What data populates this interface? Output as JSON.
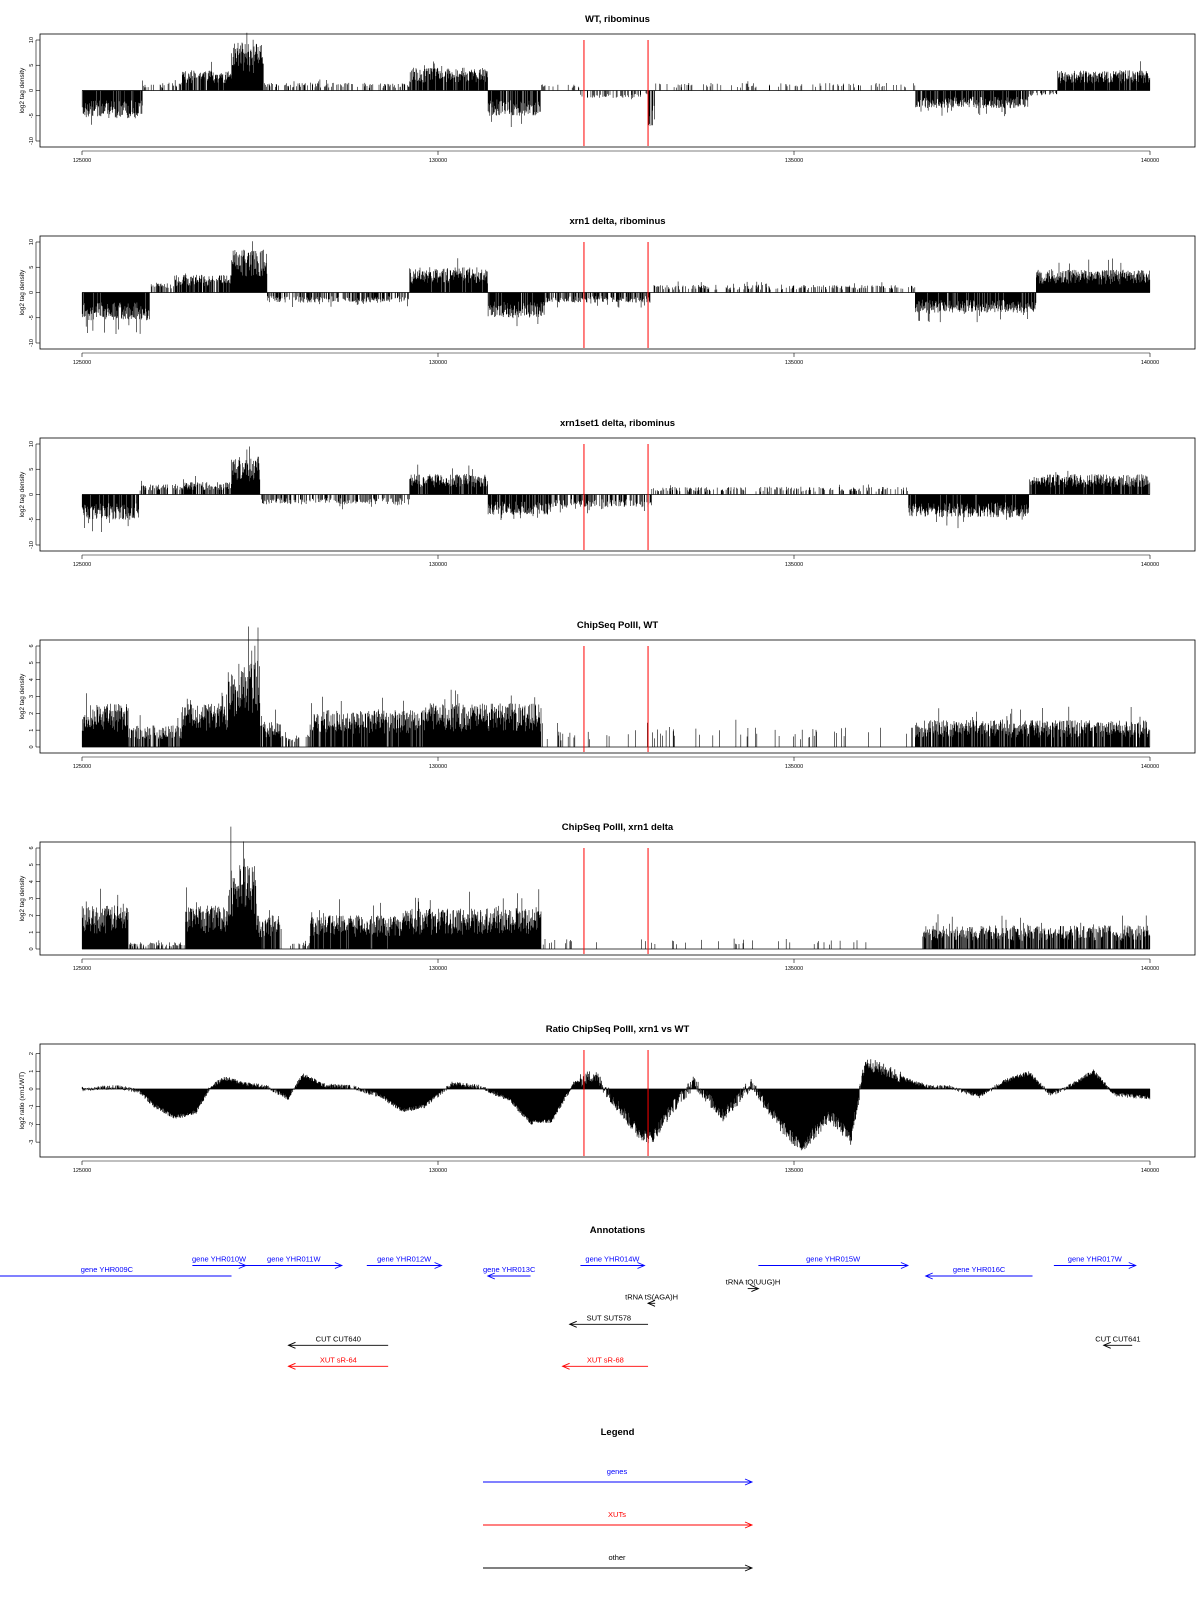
{
  "chart_data": [
    {
      "type": "bar",
      "title": "WT, ribominus",
      "xlabel": "",
      "ylabel": "log2 tag density",
      "xlim": [
        125000,
        140000
      ],
      "ylim": [
        -10,
        10
      ],
      "xticks": [
        "125000",
        "130000",
        "135000",
        "140000"
      ],
      "yticks": [
        "-10",
        "-5",
        "0",
        "5",
        "10"
      ],
      "markers": [
        132050,
        132950
      ],
      "segments": [
        {
          "from": 125000,
          "to": 125850,
          "sign": -1,
          "amp": 5.5,
          "density": 0.9
        },
        {
          "from": 125850,
          "to": 126400,
          "sign": 1,
          "amp": 1.5,
          "density": 0.35
        },
        {
          "from": 126400,
          "to": 127100,
          "sign": 1,
          "amp": 4.0,
          "density": 0.85
        },
        {
          "from": 127100,
          "to": 127550,
          "sign": 1,
          "amp": 9.5,
          "density": 1.0
        },
        {
          "from": 127550,
          "to": 129600,
          "sign": 1,
          "amp": 1.5,
          "density": 0.3
        },
        {
          "from": 129600,
          "to": 130700,
          "sign": 1,
          "amp": 4.5,
          "density": 0.9
        },
        {
          "from": 130700,
          "to": 131450,
          "sign": -1,
          "amp": 5.0,
          "density": 0.85
        },
        {
          "from": 131450,
          "to": 132000,
          "sign": 1,
          "amp": 1.2,
          "density": 0.2
        },
        {
          "from": 132000,
          "to": 132950,
          "sign": -1,
          "amp": 1.5,
          "density": 0.35
        },
        {
          "from": 132950,
          "to": 133050,
          "sign": -1,
          "amp": 7.0,
          "density": 0.6
        },
        {
          "from": 133050,
          "to": 136700,
          "sign": 1,
          "amp": 1.5,
          "density": 0.15
        },
        {
          "from": 136700,
          "to": 138300,
          "sign": -1,
          "amp": 3.5,
          "density": 0.85
        },
        {
          "from": 138300,
          "to": 138700,
          "sign": -1,
          "amp": 1.0,
          "density": 0.3
        },
        {
          "from": 138700,
          "to": 140000,
          "sign": 1,
          "amp": 4.0,
          "density": 0.95
        }
      ]
    },
    {
      "type": "bar",
      "title": "xrn1 delta, ribominus",
      "xlabel": "",
      "ylabel": "log2 tag density",
      "xlim": [
        125000,
        140000
      ],
      "ylim": [
        -10,
        10
      ],
      "xticks": [
        "125000",
        "130000",
        "135000",
        "140000"
      ],
      "yticks": [
        "-10",
        "-5",
        "0",
        "5",
        "10"
      ],
      "markers": [
        132050,
        132950
      ],
      "segments": [
        {
          "from": 125000,
          "to": 125950,
          "sign": -1,
          "amp": 5.5,
          "density": 0.95
        },
        {
          "from": 125950,
          "to": 126300,
          "sign": 1,
          "amp": 2.0,
          "density": 0.4
        },
        {
          "from": 126300,
          "to": 127100,
          "sign": 1,
          "amp": 3.5,
          "density": 0.85
        },
        {
          "from": 127100,
          "to": 127600,
          "sign": 1,
          "amp": 8.5,
          "density": 1.0
        },
        {
          "from": 127600,
          "to": 129600,
          "sign": -1,
          "amp": 2.0,
          "density": 0.5
        },
        {
          "from": 129600,
          "to": 130700,
          "sign": 1,
          "amp": 5.0,
          "density": 0.95
        },
        {
          "from": 130700,
          "to": 131500,
          "sign": -1,
          "amp": 5.0,
          "density": 0.9
        },
        {
          "from": 131500,
          "to": 133000,
          "sign": -1,
          "amp": 2.0,
          "density": 0.6
        },
        {
          "from": 133000,
          "to": 136700,
          "sign": 1,
          "amp": 1.5,
          "density": 0.3
        },
        {
          "from": 136700,
          "to": 138400,
          "sign": -1,
          "amp": 4.0,
          "density": 0.9
        },
        {
          "from": 138400,
          "to": 140000,
          "sign": 1,
          "amp": 4.5,
          "density": 1.0
        }
      ]
    },
    {
      "type": "bar",
      "title": "xrn1set1 delta, ribominus",
      "xlabel": "",
      "ylabel": "log2 tag density",
      "xlim": [
        125000,
        140000
      ],
      "ylim": [
        -10,
        10
      ],
      "xticks": [
        "125000",
        "130000",
        "135000",
        "140000"
      ],
      "yticks": [
        "-10",
        "-5",
        "0",
        "5",
        "10"
      ],
      "markers": [
        132050,
        132950
      ],
      "segments": [
        {
          "from": 125000,
          "to": 125800,
          "sign": -1,
          "amp": 5.0,
          "density": 0.9
        },
        {
          "from": 125800,
          "to": 126400,
          "sign": 1,
          "amp": 2.0,
          "density": 0.4
        },
        {
          "from": 126400,
          "to": 127100,
          "sign": 1,
          "amp": 2.5,
          "density": 0.7
        },
        {
          "from": 127100,
          "to": 127500,
          "sign": 1,
          "amp": 7.5,
          "density": 1.0
        },
        {
          "from": 127500,
          "to": 129600,
          "sign": -1,
          "amp": 2.0,
          "density": 0.45
        },
        {
          "from": 129600,
          "to": 130700,
          "sign": 1,
          "amp": 4.0,
          "density": 0.9
        },
        {
          "from": 130700,
          "to": 131600,
          "sign": -1,
          "amp": 4.0,
          "density": 0.85
        },
        {
          "from": 131600,
          "to": 133000,
          "sign": -1,
          "amp": 2.5,
          "density": 0.55
        },
        {
          "from": 133000,
          "to": 136600,
          "sign": 1,
          "amp": 1.5,
          "density": 0.25
        },
        {
          "from": 136600,
          "to": 138300,
          "sign": -1,
          "amp": 4.5,
          "density": 0.9
        },
        {
          "from": 138300,
          "to": 140000,
          "sign": 1,
          "amp": 4.0,
          "density": 0.95
        }
      ]
    },
    {
      "type": "bar",
      "title": "ChipSeq PolII, WT",
      "xlabel": "",
      "ylabel": "log2 tag density",
      "xlim": [
        125000,
        140000
      ],
      "ylim": [
        0,
        6
      ],
      "xticks": [
        "125000",
        "130000",
        "135000",
        "140000"
      ],
      "yticks": [
        "0",
        "1",
        "2",
        "3",
        "4",
        "5",
        "6"
      ],
      "markers": [
        132050,
        132950
      ],
      "segments": [
        {
          "from": 125000,
          "to": 125650,
          "sign": 1,
          "amp": 2.6,
          "density": 1.0
        },
        {
          "from": 125650,
          "to": 126400,
          "sign": 1,
          "amp": 1.3,
          "density": 0.7
        },
        {
          "from": 126400,
          "to": 127050,
          "sign": 1,
          "amp": 2.6,
          "density": 1.0
        },
        {
          "from": 127050,
          "to": 127500,
          "sign": 1,
          "amp": 5.2,
          "density": 1.0
        },
        {
          "from": 127500,
          "to": 127800,
          "sign": 1,
          "amp": 1.5,
          "density": 0.8
        },
        {
          "from": 127800,
          "to": 128200,
          "sign": 1,
          "amp": 0.8,
          "density": 0.3
        },
        {
          "from": 128200,
          "to": 129800,
          "sign": 1,
          "amp": 2.2,
          "density": 0.9
        },
        {
          "from": 129800,
          "to": 130600,
          "sign": 1,
          "amp": 2.6,
          "density": 1.0
        },
        {
          "from": 130600,
          "to": 131450,
          "sign": 1,
          "amp": 2.6,
          "density": 1.0
        },
        {
          "from": 131450,
          "to": 133000,
          "sign": 1,
          "amp": 1.0,
          "density": 0.1
        },
        {
          "from": 133000,
          "to": 136700,
          "sign": 1,
          "amp": 1.2,
          "density": 0.05
        },
        {
          "from": 136700,
          "to": 140000,
          "sign": 1,
          "amp": 1.6,
          "density": 0.85
        }
      ]
    },
    {
      "type": "bar",
      "title": "ChipSeq PolII, xrn1 delta",
      "xlabel": "",
      "ylabel": "log2 tag density",
      "xlim": [
        125000,
        140000
      ],
      "ylim": [
        0,
        6
      ],
      "xticks": [
        "125000",
        "130000",
        "135000",
        "140000"
      ],
      "yticks": [
        "0",
        "1",
        "2",
        "3",
        "4",
        "5",
        "6"
      ],
      "markers": [
        132050,
        132950
      ],
      "segments": [
        {
          "from": 125000,
          "to": 125650,
          "sign": 1,
          "amp": 2.6,
          "density": 1.0
        },
        {
          "from": 125650,
          "to": 126450,
          "sign": 1,
          "amp": 0.4,
          "density": 0.3
        },
        {
          "from": 126450,
          "to": 127050,
          "sign": 1,
          "amp": 2.6,
          "density": 1.0
        },
        {
          "from": 127050,
          "to": 127450,
          "sign": 1,
          "amp": 5.0,
          "density": 1.0
        },
        {
          "from": 127450,
          "to": 127800,
          "sign": 1,
          "amp": 2.0,
          "density": 0.8
        },
        {
          "from": 127800,
          "to": 128200,
          "sign": 1,
          "amp": 0.4,
          "density": 0.2
        },
        {
          "from": 128200,
          "to": 129500,
          "sign": 1,
          "amp": 2.0,
          "density": 0.95
        },
        {
          "from": 129500,
          "to": 130600,
          "sign": 1,
          "amp": 2.4,
          "density": 1.0
        },
        {
          "from": 130600,
          "to": 131450,
          "sign": 1,
          "amp": 2.5,
          "density": 1.0
        },
        {
          "from": 131450,
          "to": 136800,
          "sign": 1,
          "amp": 0.6,
          "density": 0.04
        },
        {
          "from": 136800,
          "to": 140000,
          "sign": 1,
          "amp": 1.4,
          "density": 0.7
        }
      ]
    },
    {
      "type": "bar",
      "title": "Ratio ChipSeq PolII, xrn1 vs WT",
      "xlabel": "",
      "ylabel": "log2 ratio (xrn1/WT)",
      "xlim": [
        125000,
        140000
      ],
      "ylim": [
        -3.5,
        2.2
      ],
      "xticks": [
        "125000",
        "130000",
        "135000",
        "140000"
      ],
      "yticks": [
        "-3",
        "-2",
        "-1",
        "0",
        "1",
        "2"
      ],
      "markers": [
        132050,
        132950
      ],
      "profile": [
        [
          125000,
          0.0
        ],
        [
          125500,
          0.1
        ],
        [
          125800,
          -0.1
        ],
        [
          126000,
          -0.9
        ],
        [
          126300,
          -1.6
        ],
        [
          126600,
          -1.3
        ],
        [
          126800,
          0.1
        ],
        [
          127000,
          0.6
        ],
        [
          127300,
          0.3
        ],
        [
          127600,
          0.1
        ],
        [
          127900,
          -0.5
        ],
        [
          128100,
          0.8
        ],
        [
          128400,
          0.2
        ],
        [
          128800,
          0.1
        ],
        [
          129200,
          -0.4
        ],
        [
          129500,
          -1.2
        ],
        [
          129800,
          -1.0
        ],
        [
          130200,
          0.3
        ],
        [
          130600,
          0.1
        ],
        [
          131000,
          -0.6
        ],
        [
          131300,
          -1.9
        ],
        [
          131600,
          -1.8
        ],
        [
          131900,
          0.3
        ],
        [
          132200,
          0.8
        ],
        [
          132500,
          -0.8
        ],
        [
          132800,
          -2.4
        ],
        [
          133000,
          -2.8
        ],
        [
          133300,
          -1.0
        ],
        [
          133600,
          0.4
        ],
        [
          134000,
          -1.5
        ],
        [
          134400,
          0.3
        ],
        [
          134800,
          -2.0
        ],
        [
          135100,
          -3.3
        ],
        [
          135500,
          -1.5
        ],
        [
          135800,
          -2.8
        ],
        [
          136000,
          1.5
        ],
        [
          136300,
          1.0
        ],
        [
          136600,
          0.5
        ],
        [
          136900,
          0.1
        ],
        [
          137200,
          0.1
        ],
        [
          137600,
          -0.4
        ],
        [
          138000,
          0.5
        ],
        [
          138300,
          0.9
        ],
        [
          138600,
          -0.3
        ],
        [
          138900,
          0.2
        ],
        [
          139200,
          1.0
        ],
        [
          139500,
          -0.3
        ],
        [
          140000,
          -0.5
        ]
      ]
    }
  ],
  "annotations": {
    "title": "Annotations",
    "items": [
      {
        "label": "gene YHR009C",
        "from": 123600,
        "to": 127100,
        "dir": "none",
        "row": 0,
        "color": "#0000ff"
      },
      {
        "label": "gene YHR010W",
        "from": 126550,
        "to": 127300,
        "dir": "right",
        "row": -0.5,
        "color": "#0000ff"
      },
      {
        "label": "gene YHR011W",
        "from": 127300,
        "to": 128650,
        "dir": "right",
        "row": -0.5,
        "color": "#0000ff"
      },
      {
        "label": "gene YHR012W",
        "from": 129000,
        "to": 130050,
        "dir": "right",
        "row": -0.5,
        "color": "#0000ff"
      },
      {
        "label": "gene YHR013C",
        "from": 130700,
        "to": 131300,
        "dir": "left",
        "row": 0,
        "color": "#0000ff"
      },
      {
        "label": "gene YHR014W",
        "from": 132000,
        "to": 132900,
        "dir": "right",
        "row": -0.5,
        "color": "#0000ff"
      },
      {
        "label": "gene YHR015W",
        "from": 134500,
        "to": 136600,
        "dir": "right",
        "row": -0.5,
        "color": "#0000ff"
      },
      {
        "label": "gene YHR016C",
        "from": 136850,
        "to": 138350,
        "dir": "left",
        "row": 0,
        "color": "#0000ff"
      },
      {
        "label": "gene YHR017W",
        "from": 138650,
        "to": 139800,
        "dir": "right",
        "row": -0.5,
        "color": "#0000ff"
      },
      {
        "label": "tRNA tQ(UUG)H",
        "from": 134350,
        "to": 134500,
        "dir": "right",
        "row": 0.6,
        "color": "#000000"
      },
      {
        "label": "tRNA tS(AGA)H",
        "from": 132950,
        "to": 133050,
        "dir": "left",
        "row": 1.3,
        "color": "#000000"
      },
      {
        "label": "SUT SUT578",
        "from": 131850,
        "to": 132950,
        "dir": "left",
        "row": 2.3,
        "color": "#000000"
      },
      {
        "label": "CUT CUT640",
        "from": 127900,
        "to": 129300,
        "dir": "left",
        "row": 3.3,
        "color": "#000000"
      },
      {
        "label": "CUT CUT641",
        "from": 139350,
        "to": 139750,
        "dir": "left",
        "row": 3.3,
        "color": "#000000"
      },
      {
        "label": "XUT sR-64",
        "from": 127900,
        "to": 129300,
        "dir": "left",
        "row": 4.3,
        "color": "#ff0000"
      },
      {
        "label": "XUT sR-68",
        "from": 131750,
        "to": 132950,
        "dir": "left",
        "row": 4.3,
        "color": "#ff0000"
      }
    ]
  },
  "legend": {
    "title": "Legend",
    "items": [
      {
        "label": "genes",
        "color": "#0000ff"
      },
      {
        "label": "XUTs",
        "color": "#ff0000"
      },
      {
        "label": "other",
        "color": "#000000"
      }
    ]
  }
}
